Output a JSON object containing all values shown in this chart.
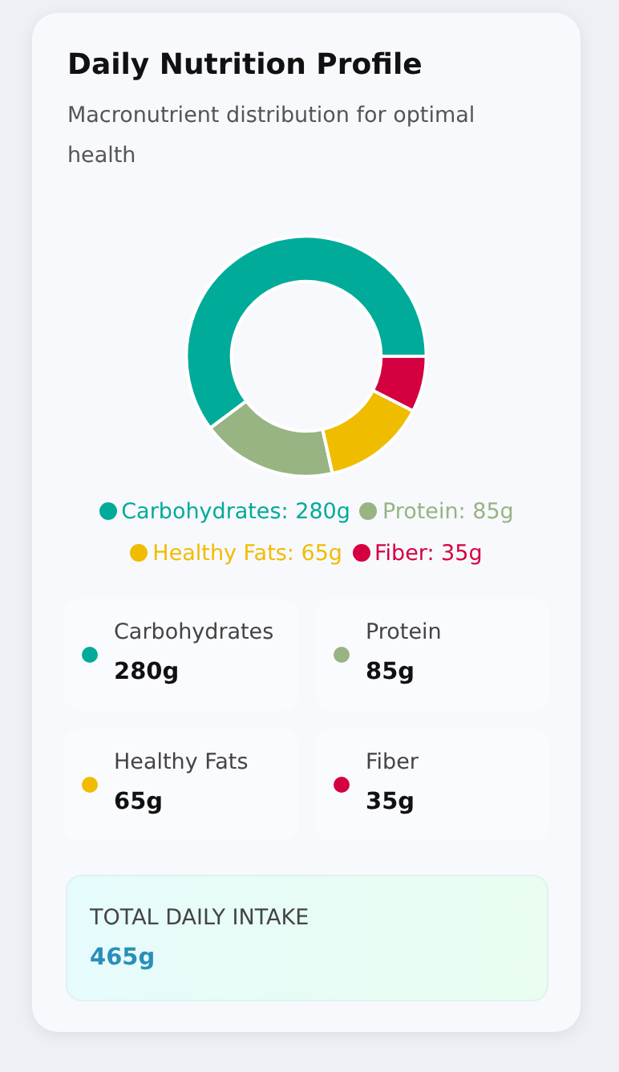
{
  "chart_data": [
    {
      "type": "donut",
      "title": "Daily Nutrition Profile",
      "subtitle": "Macronutrient distribution for optimal health",
      "categories": [
        "Carbohydrates: 280g",
        "Protein: 85g",
        "Healthy Fats: 65g",
        "Fiber: 35g"
      ],
      "values": [
        280,
        85,
        65,
        35
      ],
      "colors": [
        "#00ab9a",
        "#97b482",
        "#f0bc00",
        "#d4003f"
      ],
      "legend": "bottom"
    },
    {
      "type": "other",
      "annotations": [
        "Carbohydrates",
        "280g",
        "Protein",
        "85g",
        "Healthy Fats",
        "65g",
        "Fiber",
        "35g",
        "TOTAL DAILY INTAKE",
        "465g"
      ]
    }
  ]
}
